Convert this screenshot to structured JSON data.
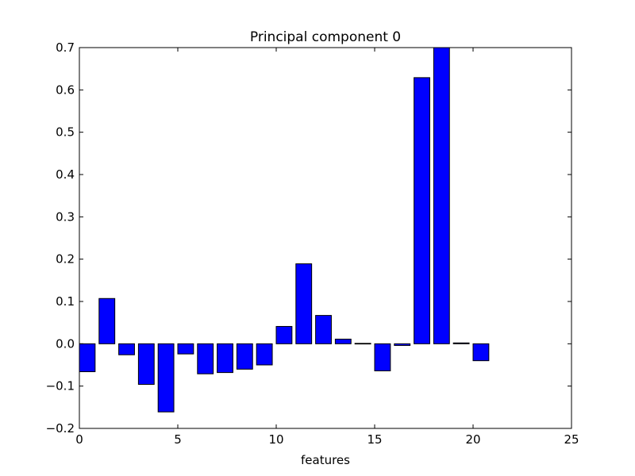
{
  "chart_data": {
    "type": "bar",
    "title": "Principal component 0",
    "xlabel": "features",
    "ylabel": "",
    "xlim": [
      0,
      25
    ],
    "ylim": [
      -0.2,
      0.7
    ],
    "xticks": [
      "0",
      "5",
      "10",
      "15",
      "20",
      "25"
    ],
    "yticks": [
      "−0.2",
      "−0.1",
      "0.0",
      "0.1",
      "0.2",
      "0.3",
      "0.4",
      "0.5",
      "0.6",
      "0.7"
    ],
    "grid": false,
    "bar_color": "#0000ff",
    "categories": [
      0,
      1,
      2,
      3,
      4,
      5,
      6,
      7,
      8,
      9,
      10,
      11,
      12,
      13,
      14,
      15,
      16,
      17,
      18,
      19,
      20
    ],
    "values": [
      -0.066,
      0.107,
      -0.026,
      -0.096,
      -0.161,
      -0.024,
      -0.071,
      -0.068,
      -0.06,
      -0.05,
      0.041,
      0.189,
      0.067,
      0.011,
      0.001,
      -0.064,
      -0.004,
      0.629,
      0.7,
      0.002,
      -0.04
    ]
  }
}
